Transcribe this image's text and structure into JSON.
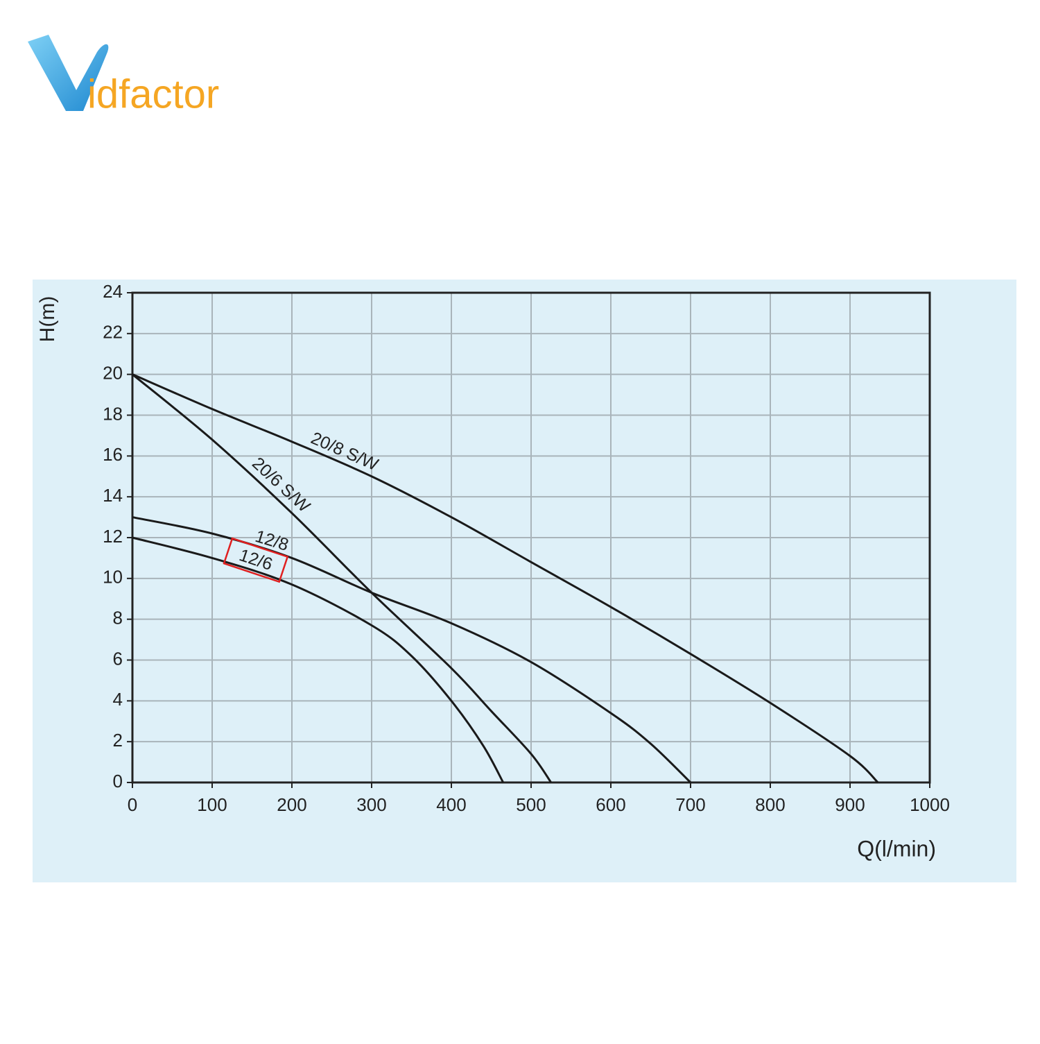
{
  "logo": {
    "text": "idfactor"
  },
  "chart_data": {
    "type": "line",
    "x_label": "Q(l/min)",
    "y_label": "H(m)",
    "xlim": [
      0,
      1000
    ],
    "ylim": [
      0,
      24
    ],
    "xticks": [
      0,
      100,
      200,
      300,
      400,
      500,
      600,
      700,
      800,
      900,
      1000
    ],
    "yticks": [
      0,
      2,
      4,
      6,
      8,
      10,
      12,
      14,
      16,
      18,
      20,
      22,
      24
    ],
    "grid": true,
    "series": [
      {
        "name": "20/8 S/W",
        "color": "#1a1a1a",
        "x": [
          0,
          100,
          200,
          300,
          400,
          500,
          600,
          700,
          800,
          900,
          935
        ],
        "values": [
          20,
          18.3,
          16.7,
          15,
          13,
          10.8,
          8.6,
          6.3,
          3.9,
          1.3,
          0
        ]
      },
      {
        "name": "20/6 S/W",
        "color": "#1a1a1a",
        "x": [
          0,
          100,
          200,
          300,
          400,
          450,
          500,
          525
        ],
        "values": [
          20,
          16.8,
          13.2,
          9.3,
          5.6,
          3.5,
          1.4,
          0
        ]
      },
      {
        "name": "12/8",
        "color": "#1a1a1a",
        "x": [
          0,
          100,
          200,
          300,
          400,
          500,
          600,
          650,
          700
        ],
        "values": [
          13,
          12.2,
          11,
          9.3,
          7.8,
          5.9,
          3.4,
          1.9,
          0
        ]
      },
      {
        "name": "12/6",
        "color": "#1a1a1a",
        "x": [
          0,
          100,
          200,
          300,
          350,
          400,
          440,
          465
        ],
        "values": [
          12,
          11,
          9.7,
          7.7,
          6.2,
          4,
          1.8,
          0
        ]
      }
    ]
  }
}
